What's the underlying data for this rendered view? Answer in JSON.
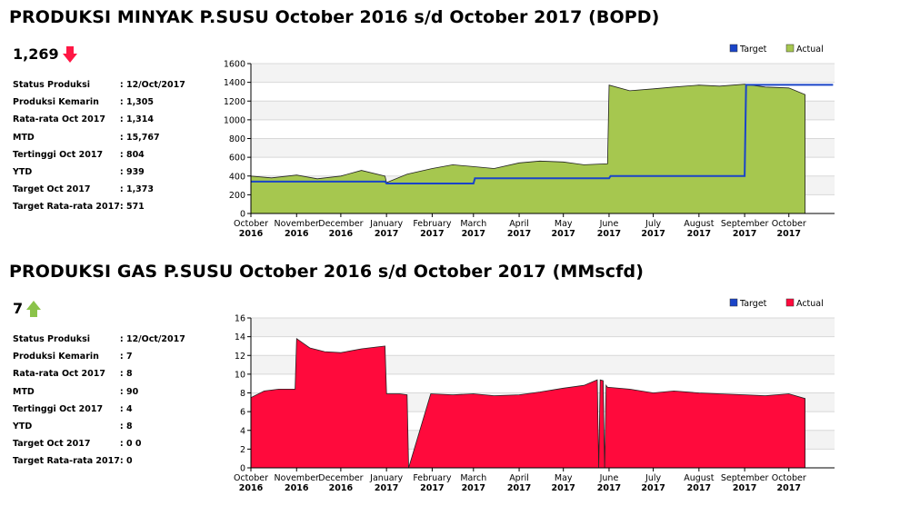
{
  "sections": [
    {
      "title": "PRODUKSI MINYAK P.SUSU October 2016 s/d October 2017 (BOPD)",
      "current_value": "1,269",
      "trend": "down",
      "trend_color": "#ff1744",
      "stats": [
        {
          "label": "Status Produksi",
          "value": ": 12/Oct/2017"
        },
        {
          "label": "Produksi Kemarin",
          "value": ": 1,305"
        },
        {
          "label": "Rata-rata Oct 2017",
          "value": ": 1,314"
        },
        {
          "label": "MTD",
          "value": ": 15,767"
        },
        {
          "label": "Tertinggi Oct 2017",
          "value": ": 804"
        },
        {
          "label": "YTD",
          "value": ": 939"
        },
        {
          "label": "Target Oct 2017",
          "value": ": 1,373"
        },
        {
          "label": "Target Rata-rata 2017",
          "value": ": 571"
        }
      ]
    },
    {
      "title": "PRODUKSI GAS P.SUSU October 2016 s/d October 2017 (MMscfd)",
      "current_value": "7",
      "trend": "up",
      "trend_color": "#8bc34a",
      "stats": [
        {
          "label": "Status Produksi",
          "value": ": 12/Oct/2017"
        },
        {
          "label": "Produksi Kemarin",
          "value": ": 7"
        },
        {
          "label": "Rata-rata Oct 2017",
          "value": ": 8"
        },
        {
          "label": "MTD",
          "value": ": 90"
        },
        {
          "label": "Tertinggi Oct 2017",
          "value": ": 4"
        },
        {
          "label": "YTD",
          "value": ": 8"
        },
        {
          "label": "Target Oct 2017",
          "value": ": 0 0"
        },
        {
          "label": "Target Rata-rata 2017",
          "value": ": 0"
        }
      ]
    }
  ],
  "chart_data": [
    {
      "type": "area",
      "x_ticks": [
        "October 2016",
        "November 2016",
        "December 2016",
        "January 2017",
        "February 2017",
        "March 2017",
        "April 2017",
        "May 2017",
        "June 2017",
        "July 2017",
        "August 2017",
        "September 2017",
        "October 2017"
      ],
      "ylim": [
        0,
        1600
      ],
      "y_ticks": [
        0,
        200,
        400,
        600,
        800,
        1000,
        1200,
        1400,
        1600
      ],
      "grid": true,
      "legend_position": "top-right",
      "series": [
        {
          "name": "Target",
          "type": "line",
          "color": "#1a44c8",
          "x": [
            "2016-10-01",
            "2016-12-31",
            "2017-01-01",
            "2017-03-01",
            "2017-03-02",
            "2017-06-01",
            "2017-06-02",
            "2017-09-01",
            "2017-09-02",
            "2017-10-31"
          ],
          "values": [
            340,
            340,
            320,
            320,
            375,
            375,
            400,
            400,
            1373,
            1373
          ]
        },
        {
          "name": "Actual",
          "type": "area",
          "color": "#a6c74f",
          "x": [
            "2016-10-01",
            "2016-10-15",
            "2016-11-01",
            "2016-11-15",
            "2016-12-01",
            "2016-12-15",
            "2016-12-31",
            "2017-01-01",
            "2017-01-15",
            "2017-02-01",
            "2017-02-15",
            "2017-03-01",
            "2017-03-15",
            "2017-04-01",
            "2017-04-15",
            "2017-05-01",
            "2017-05-15",
            "2017-05-31",
            "2017-06-01",
            "2017-06-15",
            "2017-07-01",
            "2017-07-15",
            "2017-08-01",
            "2017-08-15",
            "2017-09-01",
            "2017-09-15",
            "2017-10-01",
            "2017-10-12"
          ],
          "values": [
            400,
            380,
            410,
            370,
            400,
            460,
            400,
            330,
            420,
            480,
            520,
            500,
            480,
            540,
            560,
            550,
            520,
            530,
            1370,
            1310,
            1330,
            1350,
            1370,
            1360,
            1380,
            1350,
            1340,
            1269
          ]
        }
      ]
    },
    {
      "type": "area",
      "x_ticks": [
        "October 2016",
        "November 2016",
        "December 2016",
        "January 2017",
        "February 2017",
        "March 2017",
        "April 2017",
        "May 2017",
        "June 2017",
        "July 2017",
        "August 2017",
        "September 2017",
        "October 2017"
      ],
      "ylim": [
        0,
        16
      ],
      "y_ticks": [
        0,
        2,
        4,
        6,
        8,
        10,
        12,
        14,
        16
      ],
      "grid": true,
      "legend_position": "top-right",
      "series": [
        {
          "name": "Target",
          "type": "line",
          "color": "#1a44c8",
          "x": [],
          "values": []
        },
        {
          "name": "Actual",
          "type": "area",
          "color": "#ff0a3c",
          "x": [
            "2016-10-01",
            "2016-10-10",
            "2016-10-20",
            "2016-10-31",
            "2016-11-01",
            "2016-11-10",
            "2016-11-20",
            "2016-12-01",
            "2016-12-15",
            "2016-12-31",
            "2017-01-01",
            "2017-01-10",
            "2017-01-15",
            "2017-01-16",
            "2017-01-31",
            "2017-02-15",
            "2017-03-01",
            "2017-03-15",
            "2017-04-01",
            "2017-04-15",
            "2017-05-01",
            "2017-05-15",
            "2017-05-24",
            "2017-05-25",
            "2017-05-26",
            "2017-05-28",
            "2017-05-29",
            "2017-05-30",
            "2017-05-31",
            "2017-06-15",
            "2017-07-01",
            "2017-07-15",
            "2017-08-01",
            "2017-08-15",
            "2017-09-01",
            "2017-09-15",
            "2017-10-01",
            "2017-10-12"
          ],
          "values": [
            7.5,
            8.2,
            8.4,
            8.4,
            13.8,
            12.8,
            12.4,
            12.3,
            12.7,
            13.0,
            7.9,
            7.9,
            7.8,
            0,
            7.9,
            7.8,
            7.9,
            7.7,
            7.8,
            8.1,
            8.5,
            8.8,
            9.4,
            0,
            9.4,
            9.3,
            0,
            8.8,
            8.6,
            8.4,
            8.0,
            8.2,
            8.0,
            7.9,
            7.8,
            7.7,
            7.9,
            7.4
          ]
        }
      ]
    }
  ]
}
